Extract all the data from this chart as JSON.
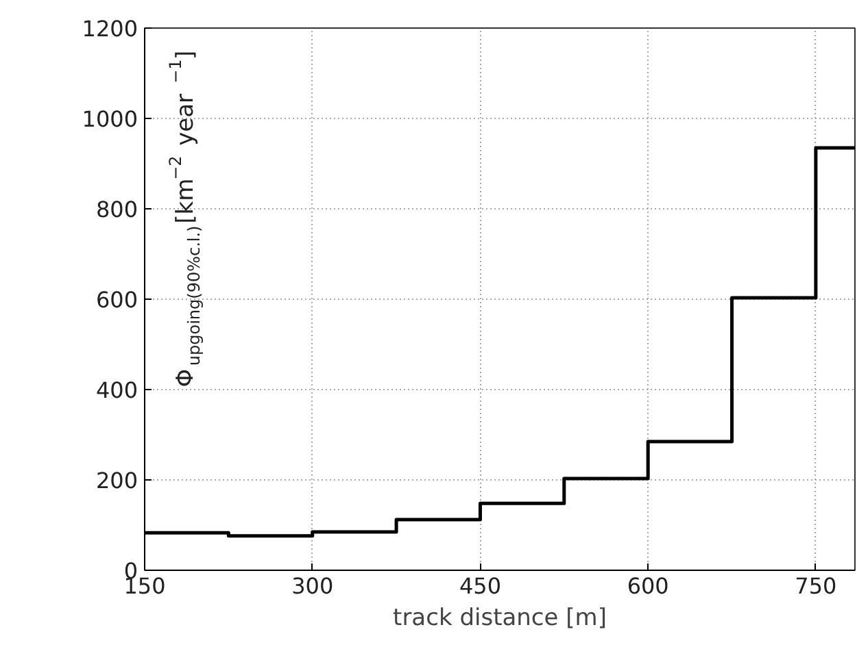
{
  "chart_data": {
    "type": "step",
    "xlabel": "track distance [m]",
    "ylabel": "Φ$_{upgoing(90%c.l.)}$[km$^{−2}$ year$^{−1}$]",
    "x": [
      150,
      225,
      300,
      375,
      450,
      525,
      600,
      675,
      750,
      785
    ],
    "values": [
      83,
      76,
      85,
      112,
      148,
      203,
      285,
      603,
      935,
      935
    ],
    "color": "#000000",
    "xlim": [
      150,
      785
    ],
    "ylim": [
      0,
      1200
    ],
    "xticks": [
      150,
      300,
      450,
      600,
      750
    ],
    "yticks": [
      0,
      200,
      400,
      600,
      800,
      1000,
      1200
    ],
    "grid": true
  }
}
